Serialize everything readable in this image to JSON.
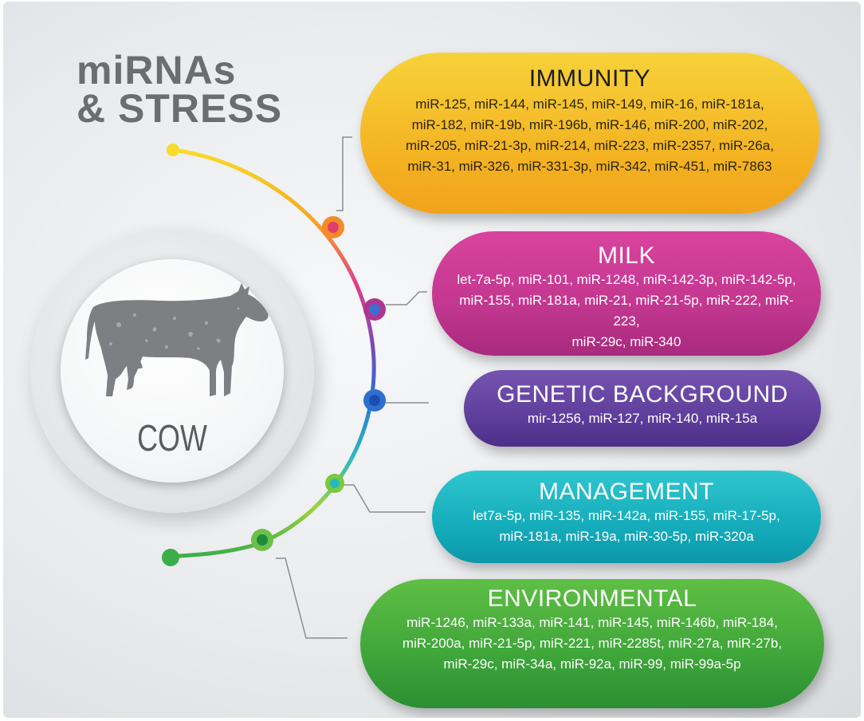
{
  "title": {
    "line1": "miRNAs",
    "line2": "& STRESS"
  },
  "center": {
    "label": "COW"
  },
  "categories": {
    "immunity": {
      "heading": "IMMUNITY",
      "lines": [
        "miR-125, miR-144, miR-145, miR-149, miR-16, miR-181a,",
        "miR-182, miR-19b, miR-196b, miR-146, miR-200, miR-202,",
        "miR-205, miR-21-3p, miR-214, miR-223, miR-2357, miR-26a,",
        "miR-31, miR-326, miR-331-3p, miR-342, miR-451, miR-7863"
      ],
      "color": "#f4b523"
    },
    "milk": {
      "heading": "MILK",
      "lines": [
        "let-7a-5p, miR-101, miR-1248, miR-142-3p, miR-142-5p,",
        "miR-155, miR-181a, miR-21, miR-21-5p, miR-222, miR-223,",
        "miR-29c, miR-340"
      ],
      "color": "#c2378f"
    },
    "genetic": {
      "heading": "GENETIC BACKGROUND",
      "lines": [
        "mir-1256, miR-127, miR-140, miR-15a"
      ],
      "color": "#5f3f9c"
    },
    "management": {
      "heading": "MANAGEMENT",
      "lines": [
        "let7a-5p, miR-135, miR-142a, miR-155, miR-17-5p,",
        "miR-181a, miR-19a, miR-30-5p, miR-320a"
      ],
      "color": "#15acbb"
    },
    "environmental": {
      "heading": "ENVIRONMENTAL",
      "lines": [
        "miR-1246, miR-133a, miR-141, miR-145, miR-146b, miR-184,",
        "miR-200a, miR-21-5p, miR-221, miR-2285t, miR-27a, miR-27b,",
        "miR-29c, miR-34a, miR-92a, miR-99, miR-99a-5p"
      ],
      "color": "#3ea53a"
    }
  }
}
